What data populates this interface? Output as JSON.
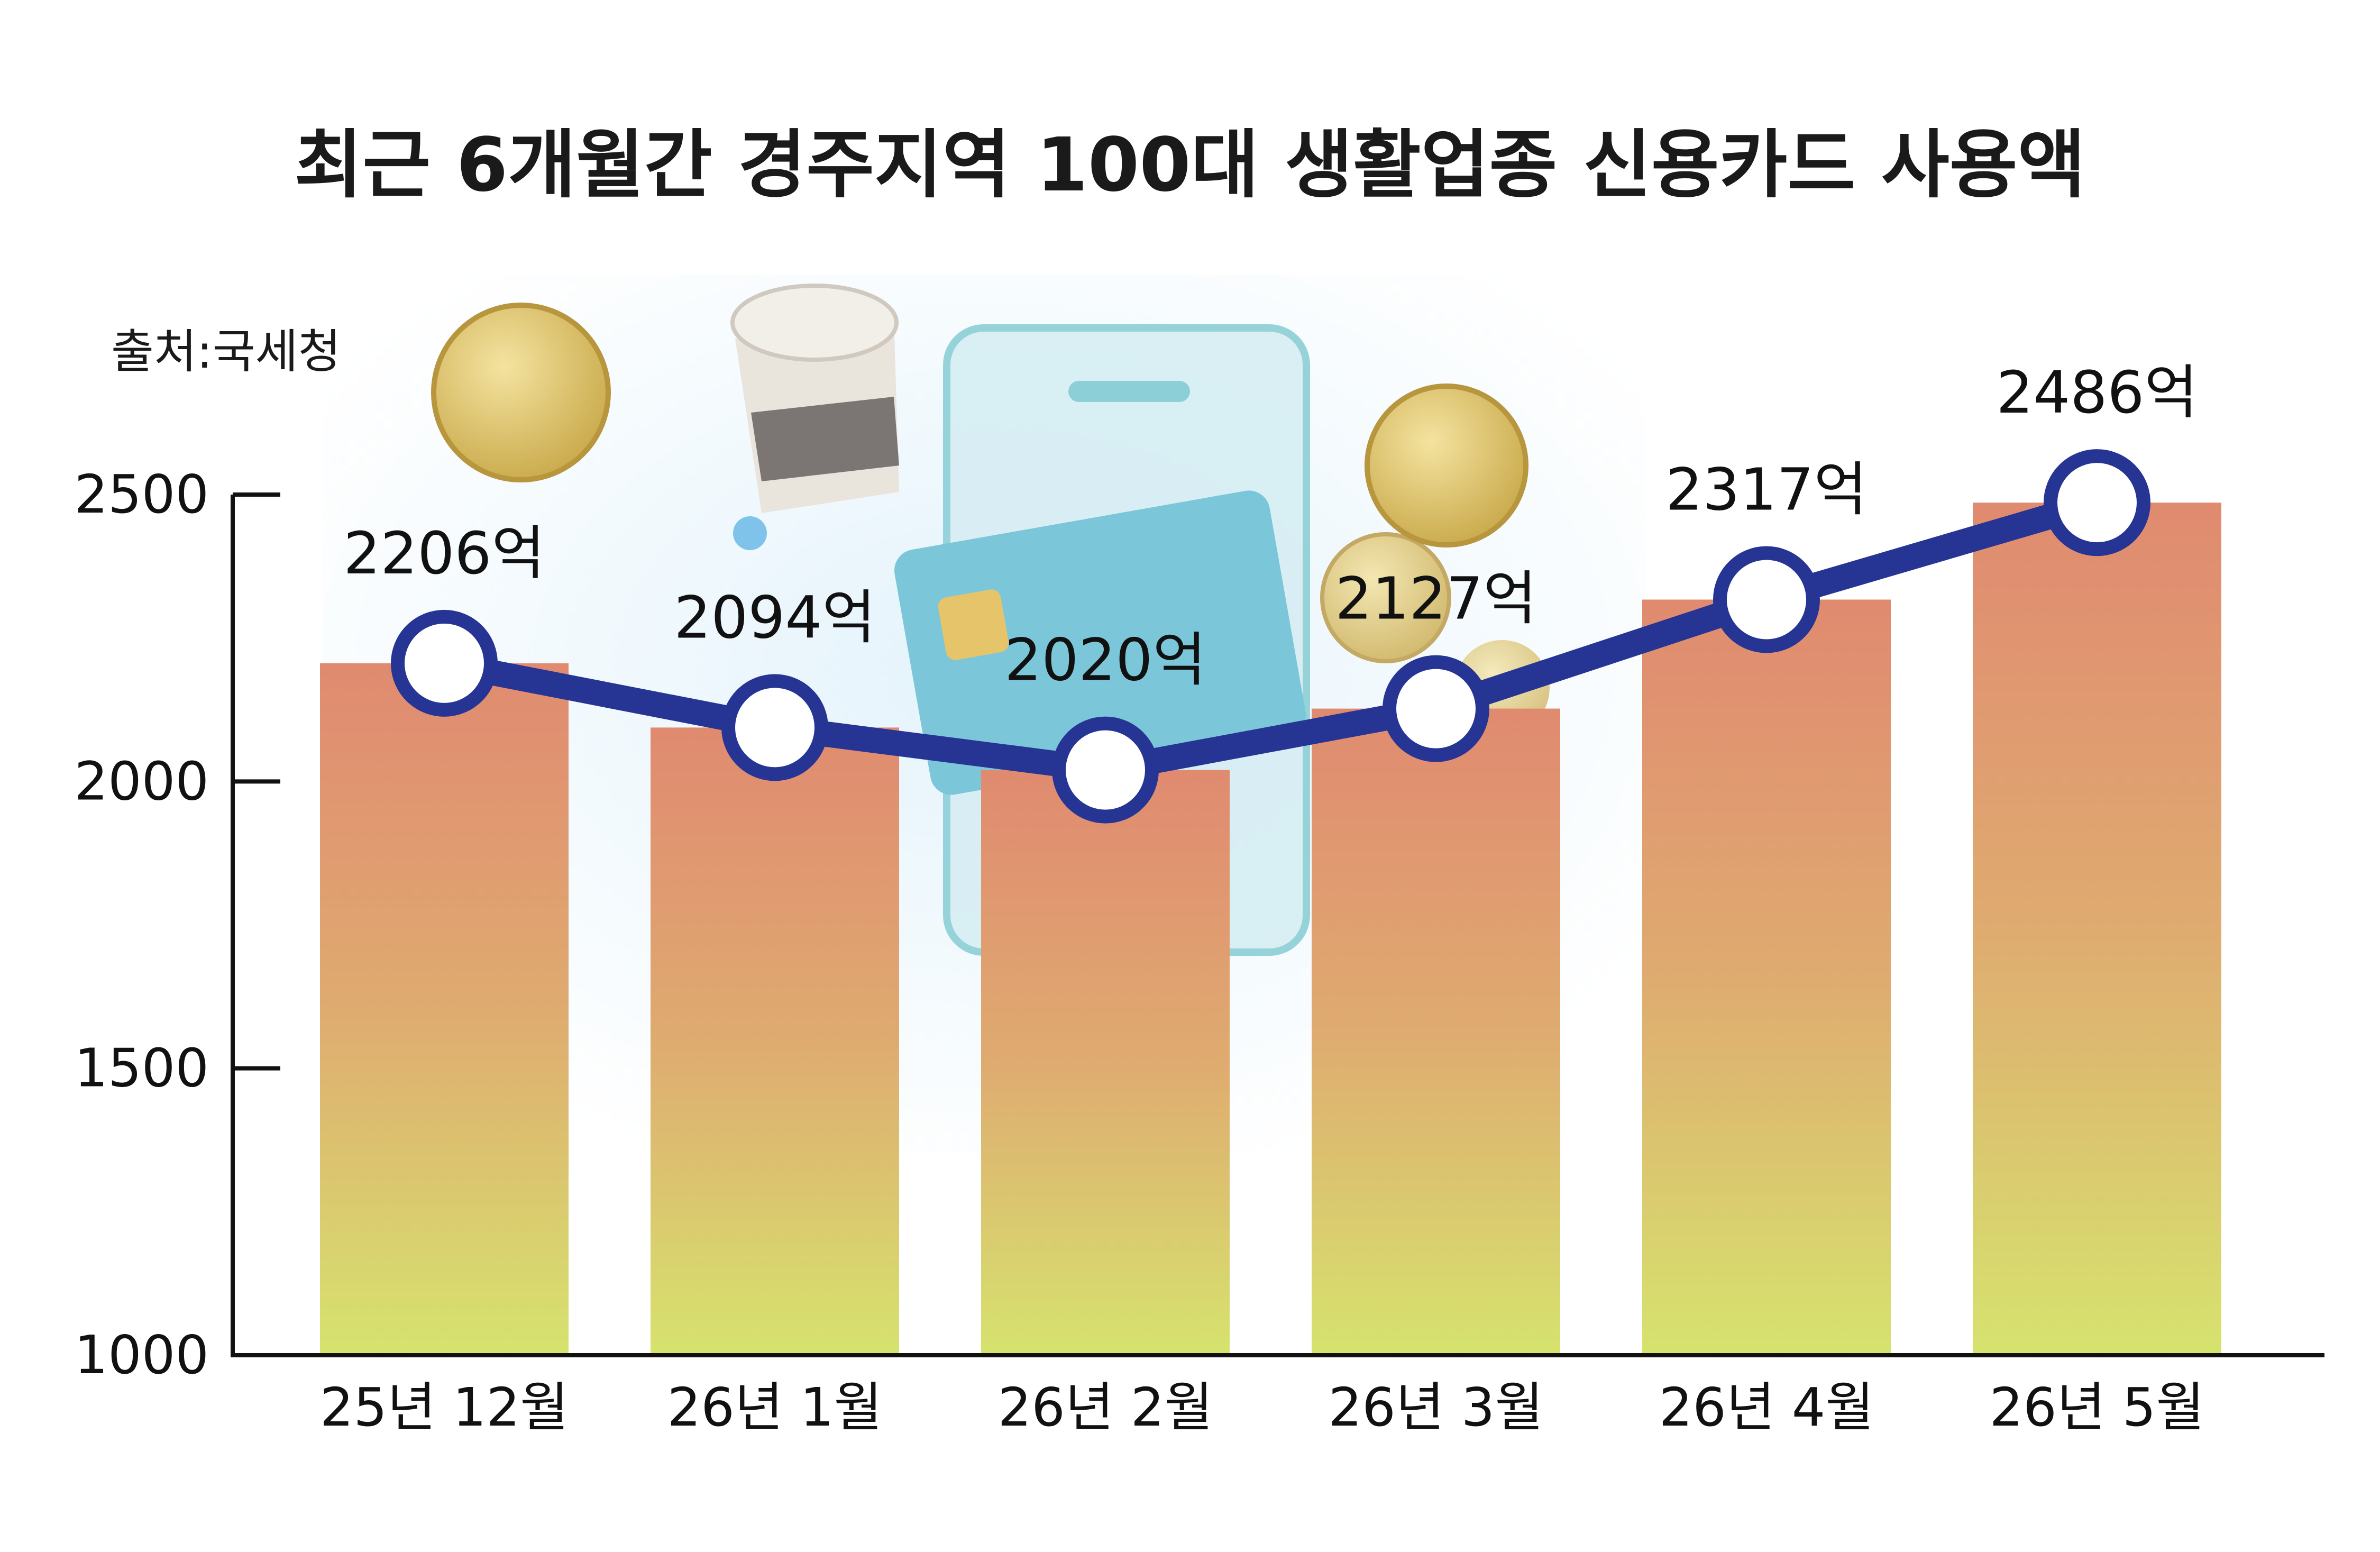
{
  "chart_data": {
    "type": "bar",
    "title": "최근 6개월간 경주지역 100대 생활업종 신용카드 사용액",
    "source": "출처:국세청",
    "categories": [
      "25년 12월",
      "26년 1월",
      "26년 2월",
      "26년 3월",
      "26년 4월",
      "26년 5월"
    ],
    "values": [
      2206,
      2094,
      2020,
      2127,
      2317,
      2486
    ],
    "value_labels": [
      "2206억",
      "2094억",
      "2020억",
      "2127억",
      "2317억",
      "2486억"
    ],
    "yticks": [
      "1000",
      "1500",
      "2000",
      "2500"
    ],
    "ylim": [
      1000,
      2500
    ],
    "line_overlay": true,
    "grid": false,
    "colors": {
      "bar_top": "#e08a70",
      "bar_bottom": "#d6e36e",
      "line": "#263594",
      "marker_fill": "#ffffff"
    }
  }
}
